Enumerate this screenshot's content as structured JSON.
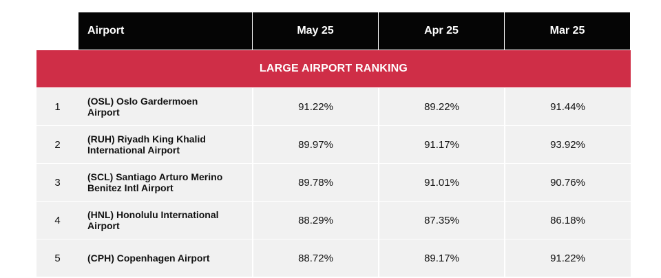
{
  "header": {
    "airport": "Airport",
    "col1": "May 25",
    "col2": "Apr 25",
    "col3": "Mar 25"
  },
  "banner": "LARGE AIRPORT RANKING",
  "rows": [
    {
      "rank": "1",
      "airport": "(OSL) Oslo Gardermoen\nAirport",
      "may": "91.22%",
      "apr": "89.22%",
      "mar": "91.44%"
    },
    {
      "rank": "2",
      "airport": "(RUH) Riyadh King Khalid\nInternational Airport",
      "may": "89.97%",
      "apr": "91.17%",
      "mar": "93.92%"
    },
    {
      "rank": "3",
      "airport": "(SCL) Santiago Arturo Merino\nBenitez Intl Airport",
      "may": "89.78%",
      "apr": "91.01%",
      "mar": "90.76%"
    },
    {
      "rank": "4",
      "airport": "(HNL) Honolulu International\nAirport",
      "may": "88.29%",
      "apr": "87.35%",
      "mar": "86.18%"
    },
    {
      "rank": "5",
      "airport": "(CPH) Copenhagen Airport",
      "may": "88.72%",
      "apr": "89.17%",
      "mar": "91.22%"
    }
  ]
}
